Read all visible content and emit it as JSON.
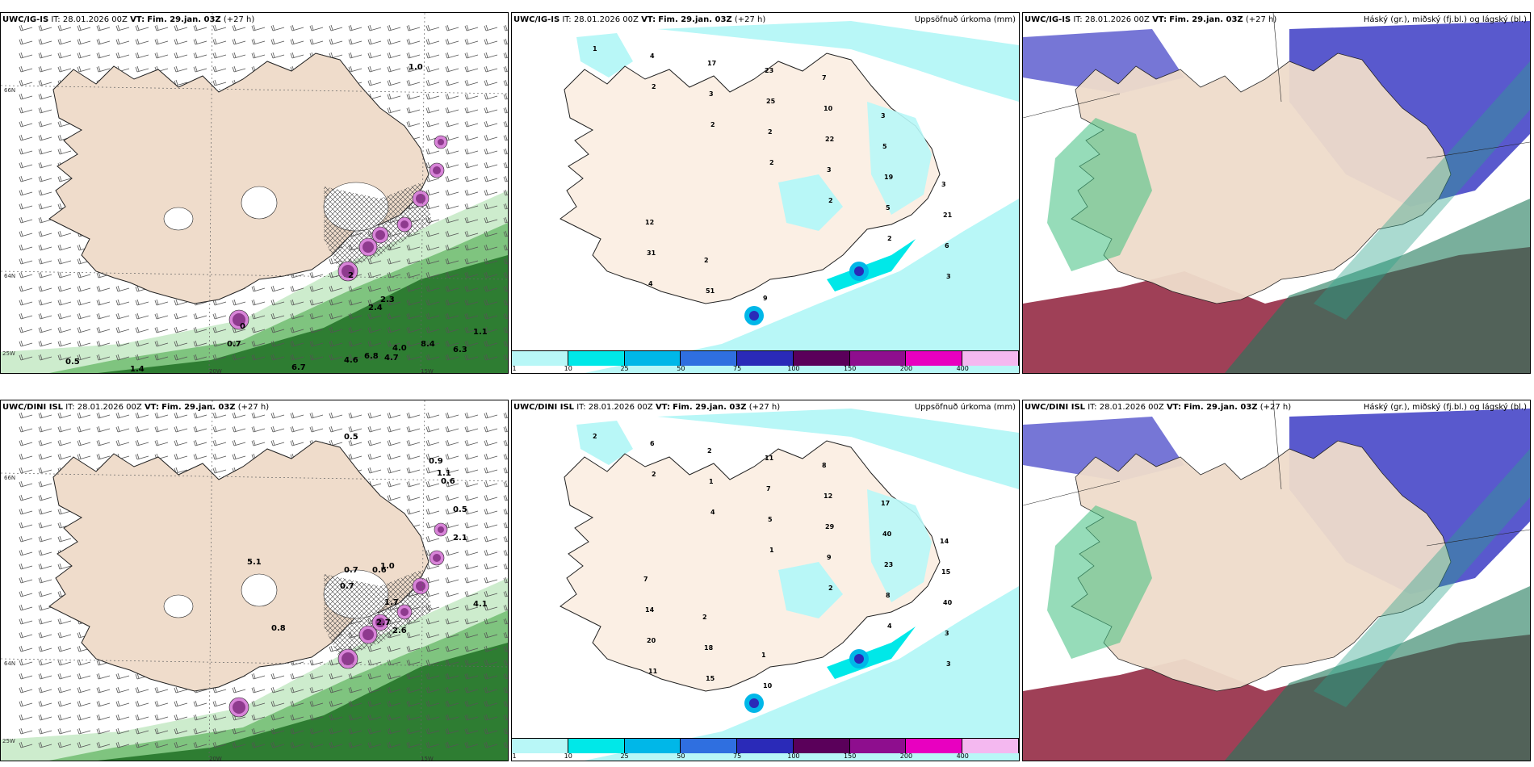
{
  "panels": [
    {
      "model": "UWC/IG-IS",
      "it_label": "IT:",
      "it_value": "28.01.2026 00Z",
      "vt_label": "VT:",
      "vt_value": "Fim. 29.jan. 03Z",
      "lead": "(+27 h)",
      "right_title": "",
      "kind": "wind",
      "labels": [
        "1.0",
        "2.4",
        "2.3",
        "4.0",
        "4.7",
        "6.8",
        "4.6",
        "6.7",
        "8.4",
        "6.3",
        "1.1",
        "0.7",
        "0.5",
        "1.4",
        "2",
        "0"
      ],
      "axis": [
        "66N",
        "64N",
        "25W",
        "20W",
        "15W"
      ]
    },
    {
      "model": "UWC/IG-IS",
      "it_label": "IT:",
      "it_value": "28.01.2026 00Z",
      "vt_label": "VT:",
      "vt_value": "Fim. 29.jan. 03Z",
      "lead": "(+27 h)",
      "right_title": "Uppsöfnuð úrkoma (mm)",
      "kind": "precip",
      "labels": [
        "1",
        "2",
        "2",
        "2",
        "2",
        "2",
        "3",
        "4",
        "3",
        "2",
        "3",
        "5",
        "6",
        "4",
        "17",
        "25",
        "22",
        "19",
        "21",
        "31",
        "51",
        "23",
        "10",
        "5",
        "3",
        "12",
        "2",
        "9",
        "7",
        "3"
      ],
      "colorbar": {
        "ticks": [
          "1",
          "10",
          "25",
          "50",
          "75",
          "100",
          "150",
          "200",
          "400"
        ],
        "colors": [
          "#b8f7f7",
          "#00e8e8",
          "#00b7e8",
          "#2f6fe0",
          "#2a2ab8",
          "#5a005a",
          "#8e0e8e",
          "#e800c0",
          "#f4b8f0"
        ]
      }
    },
    {
      "model": "UWC/IG-IS",
      "it_label": "IT:",
      "it_value": "28.01.2026 00Z",
      "vt_label": "VT:",
      "vt_value": "Fim. 29.jan. 03Z",
      "lead": "(+27 h)",
      "right_title": "Háský (gr.), miðský (fj.bl.) og lágský (bl.)",
      "kind": "cloud",
      "labels": []
    },
    {
      "model": "UWC/DINI ISL",
      "it_label": "IT:",
      "it_value": "28.01.2026 00Z",
      "vt_label": "VT:",
      "vt_value": "Fim. 29.jan. 03Z",
      "lead": "(+27 h)",
      "right_title": "",
      "kind": "wind",
      "labels": [
        "0.5",
        "0.9",
        "0.6",
        "0.7",
        "0.6",
        "1.0",
        "0.7",
        "1.7",
        "2.7",
        "2.6",
        "4.1",
        "0.8",
        "1.1",
        "0.5",
        "2.1",
        "5.1"
      ],
      "axis": [
        "66N",
        "64N",
        "25W",
        "20W",
        "15W"
      ]
    },
    {
      "model": "UWC/DINI ISL",
      "it_label": "IT:",
      "it_value": "28.01.2026 00Z",
      "vt_label": "VT:",
      "vt_value": "Fim. 29.jan. 03Z",
      "lead": "(+27 h)",
      "right_title": "Uppsöfnuð úrkoma (mm)",
      "kind": "precip",
      "labels": [
        "2",
        "2",
        "4",
        "1",
        "2",
        "4",
        "3",
        "6",
        "1",
        "5",
        "9",
        "8",
        "3",
        "11",
        "2",
        "7",
        "29",
        "23",
        "40",
        "20",
        "15",
        "11",
        "12",
        "40",
        "15",
        "14",
        "18",
        "10",
        "8",
        "17",
        "14",
        "7",
        "2",
        "1"
      ],
      "colorbar": {
        "ticks": [
          "1",
          "10",
          "25",
          "50",
          "75",
          "100",
          "150",
          "200",
          "400"
        ],
        "colors": [
          "#b8f7f7",
          "#00e8e8",
          "#00b7e8",
          "#2f6fe0",
          "#2a2ab8",
          "#5a005a",
          "#8e0e8e",
          "#e800c0",
          "#f4b8f0"
        ]
      }
    },
    {
      "model": "UWC/DINI ISL",
      "it_label": "IT:",
      "it_value": "28.01.2026 00Z",
      "vt_label": "VT:",
      "vt_value": "Fim. 29.jan. 03Z",
      "lead": "(+27 h)",
      "right_title": "Háský (gr.), miðský (fj.bl.) og lágský (bl.)",
      "kind": "cloud",
      "labels": []
    }
  ]
}
